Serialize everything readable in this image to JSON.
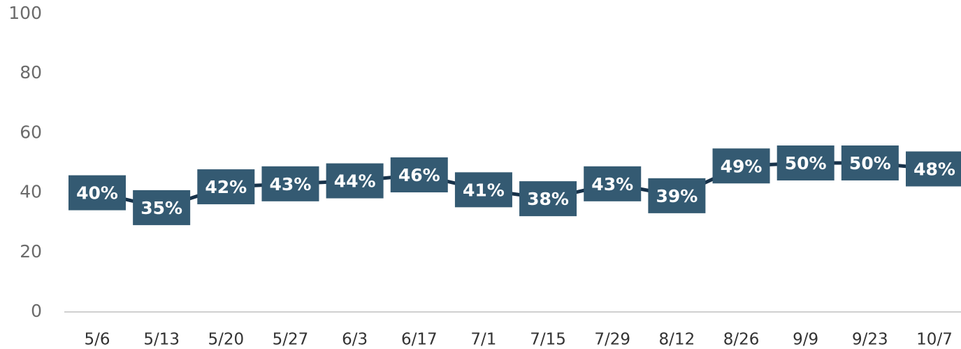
{
  "chart_data": {
    "type": "line",
    "categories": [
      "5/6",
      "5/13",
      "5/20",
      "5/27",
      "6/3",
      "6/17",
      "7/1",
      "7/15",
      "7/29",
      "8/12",
      "8/26",
      "9/9",
      "9/23",
      "10/7"
    ],
    "values": [
      40,
      35,
      42,
      43,
      44,
      46,
      41,
      38,
      43,
      39,
      49,
      50,
      50,
      48
    ],
    "value_labels": [
      "40%",
      "35%",
      "42%",
      "43%",
      "44%",
      "46%",
      "41%",
      "38%",
      "43%",
      "39%",
      "49%",
      "50%",
      "50%",
      "48%"
    ],
    "color": "#17324a",
    "label_color": "#345a72",
    "ylim": [
      0,
      100
    ],
    "yticks": [
      0,
      20,
      40,
      60,
      80,
      100
    ],
    "grid": false
  }
}
